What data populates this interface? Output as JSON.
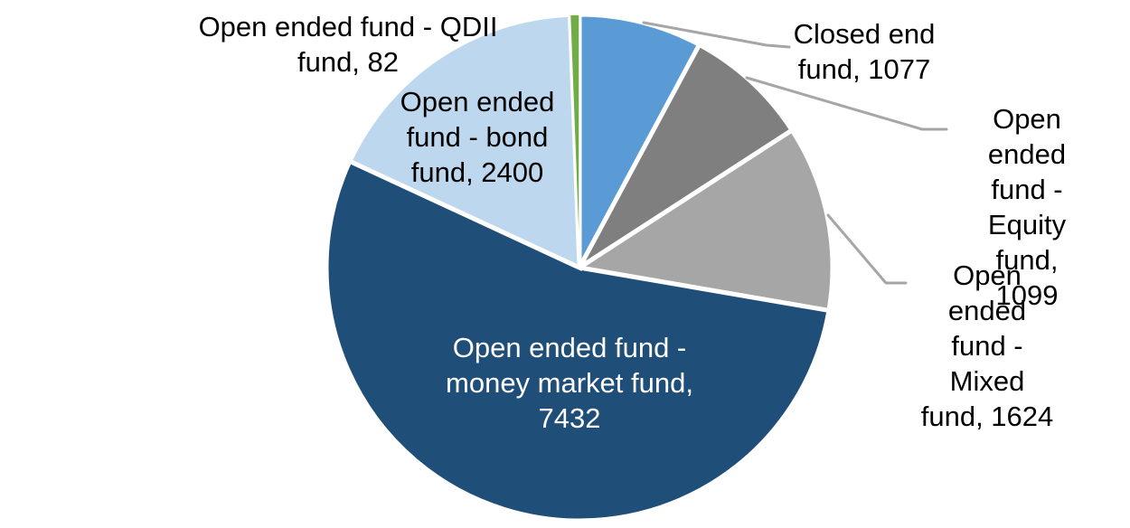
{
  "page": {
    "background_color": "#FFFFFF"
  },
  "chart_data": {
    "type": "pie",
    "title": "",
    "legend_position": "none",
    "start_angle_deg": 0,
    "direction": "clockwise",
    "label_format": "name, value",
    "leader_line_color": "#A6A6A6",
    "segments": [
      {
        "name": "Closed end fund",
        "value": 1077,
        "color": "#5B9BD5",
        "label_lines": [
          "Closed end",
          "fund, 1077"
        ],
        "label_position": "outside-right"
      },
      {
        "name": "Open ended fund - Equity fund",
        "value": 1099,
        "color": "#7F7F7F",
        "label_lines": [
          "Open ended",
          "fund - Equity",
          "fund, 1099"
        ],
        "label_position": "outside-right"
      },
      {
        "name": "Open ended fund - Mixed fund",
        "value": 1624,
        "color": "#A6A6A6",
        "label_lines": [
          "Open ended",
          "fund - Mixed",
          "fund, 1624"
        ],
        "label_position": "outside-right"
      },
      {
        "name": "Open ended fund - money market fund",
        "value": 7432,
        "color": "#1F4E79",
        "label_lines": [
          "Open ended fund -",
          "money market fund,",
          "7432"
        ],
        "label_color": "#FFFFFF",
        "label_position": "inside"
      },
      {
        "name": "Open ended fund - bond fund",
        "value": 2400,
        "color": "#BDD7EE",
        "label_lines": [
          "Open ended",
          "fund - bond",
          "fund, 2400"
        ],
        "label_position": "outside-left"
      },
      {
        "name": "Open ended fund - QDII fund",
        "value": 82,
        "color": "#70AD47",
        "label_lines": [
          "Open ended fund - QDII",
          "fund, 82"
        ],
        "label_position": "outside-left"
      }
    ]
  }
}
